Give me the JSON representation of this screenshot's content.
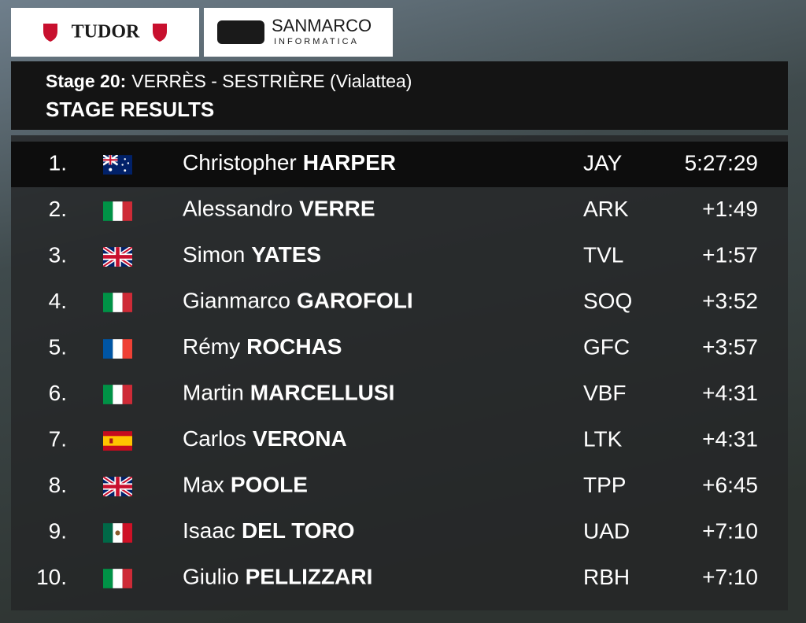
{
  "sponsors": {
    "left": "TUDOR",
    "right_main": "SANMARCO",
    "right_sub": "INFORMATICA"
  },
  "header": {
    "stage": "Stage 20:",
    "route": "VERRÈS - SESTRIÈRE (Vialattea)",
    "title": "STAGE RESULTS"
  },
  "table": {
    "rows": [
      {
        "rank": "1.",
        "first": "Christopher",
        "last": "HARPER",
        "team": "JAY",
        "time": "5:27:29"
      },
      {
        "rank": "2.",
        "first": "Alessandro",
        "last": "VERRE",
        "team": "ARK",
        "time": "+1:49"
      },
      {
        "rank": "3.",
        "first": "Simon",
        "last": "YATES",
        "team": "TVL",
        "time": "+1:57"
      },
      {
        "rank": "4.",
        "first": "Gianmarco",
        "last": "GAROFOLI",
        "team": "SOQ",
        "time": "+3:52"
      },
      {
        "rank": "5.",
        "first": "Rémy",
        "last": "ROCHAS",
        "team": "GFC",
        "time": "+3:57"
      },
      {
        "rank": "6.",
        "first": "Martin",
        "last": "MARCELLUSI",
        "team": "VBF",
        "time": "+4:31"
      },
      {
        "rank": "7.",
        "first": "Carlos",
        "last": "VERONA",
        "team": "LTK",
        "time": "+4:31"
      },
      {
        "rank": "8.",
        "first": "Max",
        "last": "POOLE",
        "team": "TPP",
        "time": "+6:45"
      },
      {
        "rank": "9.",
        "first": "Isaac",
        "last": "DEL TORO",
        "team": "UAD",
        "time": "+7:10"
      },
      {
        "rank": "10.",
        "first": "Giulio",
        "last": "PELLIZZARI",
        "team": "RBH",
        "time": "+7:10"
      }
    ]
  }
}
